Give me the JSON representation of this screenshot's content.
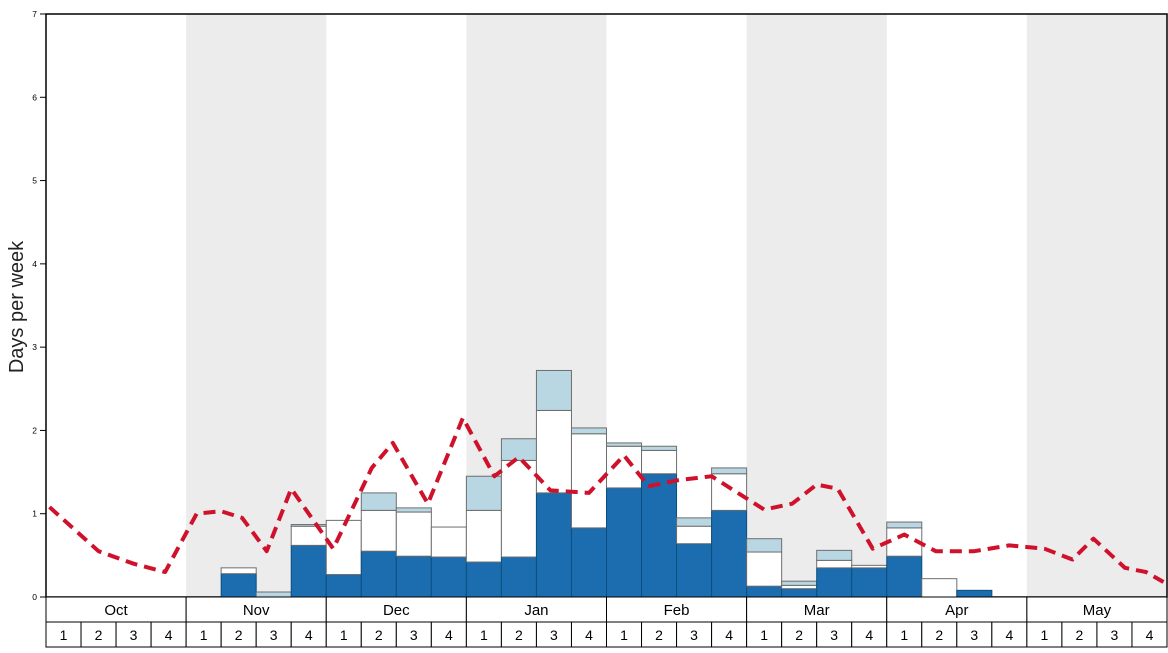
{
  "colors": {
    "band": "#ececec",
    "axis": "#000000",
    "plot_background": "#ffffff",
    "bar_dark_blue": "#1b6daf",
    "bar_dark_blue_stroke": "#0d4f7c",
    "bar_white": "#ffffff",
    "bar_light_blue": "#b9d6e3",
    "bar_outline": "#6e6e6e",
    "red_line": "#d0112b"
  },
  "chart_data": {
    "type": "bar",
    "title": "",
    "xlabel": "",
    "ylabel": "Days per week",
    "ylim": [
      0,
      7
    ],
    "yticks": [
      0,
      1,
      2,
      3,
      4,
      5,
      6,
      7
    ],
    "grid": "off",
    "legend": "none",
    "months": [
      "Oct",
      "Nov",
      "Dec",
      "Jan",
      "Feb",
      "Mar",
      "Apr",
      "May"
    ],
    "week_labels_per_month": [
      "1",
      "2",
      "3",
      "4"
    ],
    "shaded_month_indices": [
      1,
      3,
      5,
      7
    ],
    "series": [
      {
        "name": "dark-blue-bar",
        "color": "#1b6daf",
        "stroke": "#0d4f7c",
        "values": [
          0,
          0,
          0,
          0,
          0,
          0.28,
          0,
          0.62,
          0.27,
          0.55,
          0.49,
          0.48,
          0.42,
          0.48,
          1.25,
          0.83,
          1.31,
          1.48,
          0.64,
          1.04,
          0.13,
          0.1,
          0.35,
          0.35,
          0.49,
          0,
          0.08,
          0,
          0,
          0,
          0,
          0
        ]
      },
      {
        "name": "white-bar",
        "color": "#ffffff",
        "stroke": "#6e6e6e",
        "values": [
          0,
          0,
          0,
          0,
          0,
          0.07,
          0,
          0.23,
          0.65,
          0.49,
          0.53,
          0.36,
          0.62,
          1.16,
          0.99,
          1.13,
          0.5,
          0.28,
          0.21,
          0.44,
          0.41,
          0.04,
          0.09,
          0.03,
          0.34,
          0.22,
          0,
          0,
          0,
          0,
          0,
          0
        ]
      },
      {
        "name": "light-blue-bar",
        "color": "#b9d6e3",
        "stroke": "#6e6e6e",
        "values": [
          0,
          0,
          0,
          0,
          0,
          0,
          0.06,
          0.02,
          0,
          0.21,
          0.05,
          0,
          0.41,
          0.26,
          0.48,
          0.07,
          0.04,
          0.05,
          0.1,
          0.07,
          0.16,
          0.05,
          0.12,
          0,
          0.07,
          0,
          0,
          0,
          0,
          0,
          0,
          0
        ]
      }
    ],
    "line": {
      "name": "red-dashed-line",
      "color": "#d0112b",
      "style": "dashed",
      "width": 4,
      "dash": [
        12,
        7
      ],
      "points_week_value": [
        [
          0.1,
          1.08
        ],
        [
          1.5,
          0.55
        ],
        [
          2.5,
          0.4
        ],
        [
          3.4,
          0.3
        ],
        [
          4.3,
          1.0
        ],
        [
          5.0,
          1.03
        ],
        [
          5.6,
          0.95
        ],
        [
          6.3,
          0.55
        ],
        [
          7.0,
          1.3
        ],
        [
          8.2,
          0.58
        ],
        [
          9.3,
          1.55
        ],
        [
          9.9,
          1.85
        ],
        [
          10.9,
          1.12
        ],
        [
          11.9,
          2.15
        ],
        [
          12.8,
          1.45
        ],
        [
          13.5,
          1.68
        ],
        [
          14.4,
          1.28
        ],
        [
          15.5,
          1.25
        ],
        [
          16.5,
          1.7
        ],
        [
          17.2,
          1.33
        ],
        [
          18.0,
          1.4
        ],
        [
          19.0,
          1.45
        ],
        [
          20.5,
          1.05
        ],
        [
          21.3,
          1.12
        ],
        [
          22.0,
          1.35
        ],
        [
          22.6,
          1.3
        ],
        [
          23.6,
          0.58
        ],
        [
          24.5,
          0.75
        ],
        [
          25.4,
          0.55
        ],
        [
          26.5,
          0.55
        ],
        [
          27.5,
          0.62
        ],
        [
          28.5,
          0.58
        ],
        [
          29.3,
          0.45
        ],
        [
          29.9,
          0.7
        ],
        [
          30.8,
          0.35
        ],
        [
          31.4,
          0.3
        ],
        [
          31.9,
          0.18
        ]
      ]
    }
  }
}
